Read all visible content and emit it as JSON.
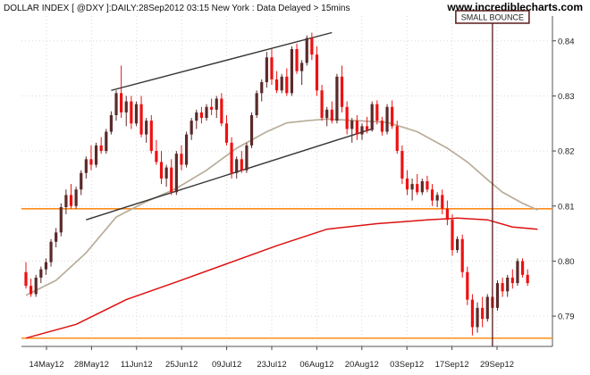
{
  "header": {
    "title": "DOLLAR INDEX [ @DXY ]:DAILY:28Sep2012 03:15 New York : Data Delayed > 15mins",
    "brand": "www.incrediblecharts.com"
  },
  "colors": {
    "up": "#5a2a2a",
    "down": "#ee1111",
    "ma_short": "#b8ad98",
    "ma_long": "#dd1111",
    "level_line": "#ff8c1a",
    "trend_line": "#333333",
    "marker_line": "#5a1a1a",
    "grid": "#d8d8d8"
  },
  "chart_data": {
    "type": "candlestick",
    "title": "DOLLAR INDEX [ @DXY ]:DAILY:28Sep2012 03:15 New York : Data Delayed > 15mins",
    "x_ticks": [
      "14May12",
      "28May12",
      "11Jun12",
      "25Jun12",
      "09Jul12",
      "23Jul12",
      "06Aug12",
      "20Aug12",
      "03Sep12",
      "17Sep12",
      "29Sep12"
    ],
    "y_ticks": [
      "0.84",
      "0.83",
      "0.82",
      "0.81",
      "0.80",
      "0.79"
    ],
    "y_tick_values": [
      0.84,
      0.83,
      0.82,
      0.81,
      0.8,
      0.79
    ],
    "ylim": [
      0.7845,
      0.8445
    ],
    "grid": true,
    "x_range": [
      0,
      103
    ],
    "candles": [
      [
        0.798,
        0.7998,
        0.795,
        0.7955
      ],
      [
        0.7955,
        0.7968,
        0.7935,
        0.794
      ],
      [
        0.794,
        0.7975,
        0.7935,
        0.797
      ],
      [
        0.797,
        0.799,
        0.796,
        0.7985
      ],
      [
        0.7985,
        0.8005,
        0.7975,
        0.7998
      ],
      [
        0.7998,
        0.804,
        0.799,
        0.8035
      ],
      [
        0.8035,
        0.806,
        0.8025,
        0.8052
      ],
      [
        0.8052,
        0.8105,
        0.8045,
        0.8098
      ],
      [
        0.8098,
        0.813,
        0.8085,
        0.812
      ],
      [
        0.812,
        0.814,
        0.8095,
        0.81
      ],
      [
        0.81,
        0.8135,
        0.8095,
        0.813
      ],
      [
        0.813,
        0.8165,
        0.812,
        0.816
      ],
      [
        0.816,
        0.819,
        0.815,
        0.8185
      ],
      [
        0.8185,
        0.821,
        0.8165,
        0.8175
      ],
      [
        0.8175,
        0.8215,
        0.817,
        0.821
      ],
      [
        0.821,
        0.8225,
        0.8195,
        0.82
      ],
      [
        0.82,
        0.824,
        0.8195,
        0.8235
      ],
      [
        0.8235,
        0.8272,
        0.823,
        0.8265
      ],
      [
        0.8265,
        0.831,
        0.8255,
        0.8305
      ],
      [
        0.8305,
        0.8355,
        0.826,
        0.827
      ],
      [
        0.827,
        0.83,
        0.8245,
        0.829
      ],
      [
        0.829,
        0.83,
        0.824,
        0.825
      ],
      [
        0.825,
        0.829,
        0.8245,
        0.8285
      ],
      [
        0.8285,
        0.83,
        0.8225,
        0.823
      ],
      [
        0.823,
        0.826,
        0.8215,
        0.8255
      ],
      [
        0.8255,
        0.8265,
        0.8195,
        0.82
      ],
      [
        0.82,
        0.822,
        0.8175,
        0.818
      ],
      [
        0.818,
        0.82,
        0.814,
        0.815
      ],
      [
        0.815,
        0.8175,
        0.8135,
        0.817
      ],
      [
        0.817,
        0.8185,
        0.812,
        0.8125
      ],
      [
        0.8125,
        0.82,
        0.812,
        0.8195
      ],
      [
        0.8195,
        0.821,
        0.8165,
        0.8175
      ],
      [
        0.8175,
        0.8235,
        0.817,
        0.823
      ],
      [
        0.823,
        0.826,
        0.822,
        0.8255
      ],
      [
        0.8255,
        0.8275,
        0.824,
        0.827
      ],
      [
        0.827,
        0.828,
        0.825,
        0.826
      ],
      [
        0.826,
        0.8285,
        0.8255,
        0.828
      ],
      [
        0.828,
        0.8295,
        0.8265,
        0.8275
      ],
      [
        0.8275,
        0.83,
        0.826,
        0.8295
      ],
      [
        0.8295,
        0.8305,
        0.8245,
        0.825
      ],
      [
        0.825,
        0.8265,
        0.821,
        0.8215
      ],
      [
        0.8215,
        0.8225,
        0.815,
        0.816
      ],
      [
        0.816,
        0.819,
        0.815,
        0.8185
      ],
      [
        0.8185,
        0.82,
        0.816,
        0.8165
      ],
      [
        0.8165,
        0.8215,
        0.816,
        0.821
      ],
      [
        0.821,
        0.827,
        0.8205,
        0.8265
      ],
      [
        0.8265,
        0.831,
        0.826,
        0.8305
      ],
      [
        0.8305,
        0.833,
        0.829,
        0.8325
      ],
      [
        0.8325,
        0.838,
        0.8315,
        0.837
      ],
      [
        0.837,
        0.8385,
        0.832,
        0.833
      ],
      [
        0.833,
        0.8345,
        0.8305,
        0.831
      ],
      [
        0.831,
        0.834,
        0.8305,
        0.8335
      ],
      [
        0.8335,
        0.835,
        0.83,
        0.8305
      ],
      [
        0.8305,
        0.839,
        0.83,
        0.8385
      ],
      [
        0.8385,
        0.8395,
        0.834,
        0.8345
      ],
      [
        0.8345,
        0.8365,
        0.832,
        0.836
      ],
      [
        0.836,
        0.841,
        0.8355,
        0.8405
      ],
      [
        0.8405,
        0.8415,
        0.8365,
        0.8375
      ],
      [
        0.8375,
        0.839,
        0.83,
        0.831
      ],
      [
        0.831,
        0.832,
        0.8255,
        0.826
      ],
      [
        0.826,
        0.828,
        0.8245,
        0.8275
      ],
      [
        0.8275,
        0.829,
        0.825,
        0.8255
      ],
      [
        0.8255,
        0.834,
        0.825,
        0.8335
      ],
      [
        0.8335,
        0.8355,
        0.827,
        0.828
      ],
      [
        0.828,
        0.829,
        0.823,
        0.824
      ],
      [
        0.824,
        0.826,
        0.8215,
        0.8255
      ],
      [
        0.8255,
        0.8265,
        0.822,
        0.823
      ],
      [
        0.823,
        0.825,
        0.822,
        0.8245
      ],
      [
        0.8245,
        0.8262,
        0.8232,
        0.8238
      ],
      [
        0.8238,
        0.829,
        0.8235,
        0.8285
      ],
      [
        0.8285,
        0.8292,
        0.8248,
        0.8255
      ],
      [
        0.8255,
        0.8262,
        0.8228,
        0.8235
      ],
      [
        0.8235,
        0.8285,
        0.823,
        0.828
      ],
      [
        0.828,
        0.8292,
        0.824,
        0.8245
      ],
      [
        0.8245,
        0.8255,
        0.8195,
        0.82
      ],
      [
        0.82,
        0.821,
        0.814,
        0.815
      ],
      [
        0.815,
        0.8165,
        0.812,
        0.813
      ],
      [
        0.813,
        0.815,
        0.811,
        0.814
      ],
      [
        0.814,
        0.8158,
        0.812,
        0.8125
      ],
      [
        0.8125,
        0.815,
        0.812,
        0.8145
      ],
      [
        0.8145,
        0.8155,
        0.8125,
        0.813
      ],
      [
        0.813,
        0.814,
        0.81,
        0.811
      ],
      [
        0.811,
        0.8125,
        0.8098,
        0.812
      ],
      [
        0.812,
        0.813,
        0.8085,
        0.8095
      ],
      [
        0.8095,
        0.811,
        0.8065,
        0.8075
      ],
      [
        0.8075,
        0.8085,
        0.801,
        0.802
      ],
      [
        0.802,
        0.8045,
        0.8015,
        0.804
      ],
      [
        0.804,
        0.8048,
        0.797,
        0.798
      ],
      [
        0.798,
        0.799,
        0.792,
        0.793
      ],
      [
        0.793,
        0.794,
        0.7865,
        0.788
      ],
      [
        0.788,
        0.7925,
        0.787,
        0.7915
      ],
      [
        0.7915,
        0.7935,
        0.788,
        0.7895
      ],
      [
        0.7895,
        0.794,
        0.789,
        0.7935
      ],
      [
        0.7935,
        0.795,
        0.7905,
        0.7915
      ],
      [
        0.7915,
        0.7965,
        0.791,
        0.796
      ],
      [
        0.796,
        0.797,
        0.7935,
        0.7945
      ],
      [
        0.7945,
        0.7975,
        0.7935,
        0.797
      ],
      [
        0.797,
        0.7985,
        0.795,
        0.796
      ],
      [
        0.796,
        0.8005,
        0.7955,
        0.8
      ],
      [
        0.8,
        0.8005,
        0.797,
        0.7975
      ],
      [
        0.7975,
        0.7985,
        0.7955,
        0.796
      ]
    ],
    "ma_short": [
      [
        0,
        0.7938
      ],
      [
        6,
        0.7965
      ],
      [
        12,
        0.8015
      ],
      [
        18,
        0.808
      ],
      [
        24,
        0.8108
      ],
      [
        30,
        0.8132
      ],
      [
        36,
        0.8165
      ],
      [
        42,
        0.8205
      ],
      [
        48,
        0.8235
      ],
      [
        52,
        0.8251
      ],
      [
        56,
        0.8255
      ],
      [
        60,
        0.8258
      ],
      [
        66,
        0.8255
      ],
      [
        72,
        0.8252
      ],
      [
        78,
        0.8235
      ],
      [
        84,
        0.8205
      ],
      [
        88,
        0.818
      ],
      [
        92,
        0.8148
      ],
      [
        95,
        0.8125
      ],
      [
        99,
        0.8105
      ],
      [
        102,
        0.8093
      ]
    ],
    "ma_long": [
      [
        0,
        0.786
      ],
      [
        10,
        0.7885
      ],
      [
        20,
        0.793
      ],
      [
        30,
        0.7962
      ],
      [
        40,
        0.7995
      ],
      [
        50,
        0.8028
      ],
      [
        60,
        0.8058
      ],
      [
        70,
        0.8068
      ],
      [
        76,
        0.8072
      ],
      [
        80,
        0.8075
      ],
      [
        86,
        0.8078
      ],
      [
        92,
        0.8075
      ],
      [
        97,
        0.8062
      ],
      [
        102,
        0.8058
      ]
    ],
    "trend_lines": [
      {
        "from": [
          12,
          0.8075
        ],
        "to": [
          69,
          0.824
        ]
      },
      {
        "from": [
          17,
          0.831
        ],
        "to": [
          61,
          0.8415
        ]
      }
    ],
    "horizontal_levels": [
      0.8095,
      0.786
    ],
    "vertical_marker": {
      "x": 93
    },
    "annotations": [
      {
        "text": "SMALL BOUNCE",
        "x": 93
      }
    ]
  }
}
